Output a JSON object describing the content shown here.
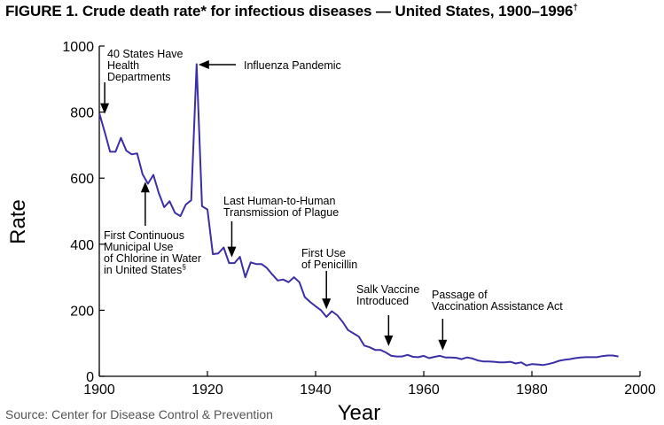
{
  "header": {
    "title": "FIGURE 1. Crude death rate* for infectious diseases — United States, 1900–1996",
    "title_mark": "†"
  },
  "footer": {
    "source": "Source: Center for Disease Control & Prevention"
  },
  "colors": {
    "line": "#3b2fa5",
    "axis": "#000000"
  },
  "chart_data": {
    "type": "line",
    "title": "FIGURE 1. Crude death rate* for infectious diseases — United States, 1900–1996†",
    "xlabel": "Year",
    "ylabel": "Rate",
    "xlim": [
      1900,
      2000
    ],
    "ylim": [
      0,
      1000
    ],
    "x_ticks": [
      1900,
      1920,
      1940,
      1960,
      1980,
      2000
    ],
    "y_ticks": [
      0,
      200,
      400,
      600,
      800,
      1000
    ],
    "grid": false,
    "series": [
      {
        "x": [
          1900,
          1901,
          1902,
          1903,
          1904,
          1905,
          1906,
          1907,
          1908,
          1909,
          1910,
          1911,
          1912,
          1913,
          1914,
          1915,
          1916,
          1917,
          1918,
          1919,
          1920,
          1921,
          1922,
          1923,
          1924,
          1925,
          1926,
          1927,
          1928,
          1929,
          1930,
          1931,
          1932,
          1933,
          1934,
          1935,
          1936,
          1937,
          1938,
          1939,
          1940,
          1941,
          1942,
          1943,
          1944,
          1945,
          1946,
          1947,
          1948,
          1949,
          1950,
          1951,
          1952,
          1953,
          1954,
          1955,
          1956,
          1957,
          1958,
          1959,
          1960,
          1961,
          1962,
          1963,
          1964,
          1965,
          1966,
          1967,
          1968,
          1969,
          1970,
          1971,
          1972,
          1973,
          1974,
          1975,
          1976,
          1977,
          1978,
          1979,
          1980,
          1981,
          1982,
          1983,
          1984,
          1985,
          1986,
          1987,
          1988,
          1989,
          1990,
          1991,
          1992,
          1993,
          1994,
          1995,
          1996
        ],
        "y": [
          797,
          740,
          680,
          680,
          722,
          683,
          672,
          675,
          612,
          583,
          610,
          555,
          512,
          530,
          495,
          485,
          520,
          533,
          945,
          515,
          505,
          370,
          372,
          390,
          343,
          343,
          362,
          300,
          345,
          340,
          340,
          328,
          308,
          290,
          293,
          285,
          300,
          285,
          240,
          225,
          212,
          200,
          180,
          197,
          185,
          165,
          140,
          130,
          120,
          93,
          88,
          80,
          80,
          72,
          62,
          60,
          60,
          65,
          59,
          58,
          62,
          55,
          59,
          62,
          57,
          57,
          56,
          52,
          57,
          54,
          48,
          45,
          45,
          44,
          42,
          42,
          44,
          39,
          42,
          33,
          37,
          36,
          34,
          37,
          41,
          47,
          50,
          52,
          55,
          57,
          58,
          58,
          58,
          61,
          63,
          63,
          60
        ]
      }
    ],
    "annotations": [
      {
        "lines": [
          "40 States Have",
          "Health",
          "Departments"
        ],
        "x": 1901,
        "y": 800
      },
      {
        "lines": [
          "Influenza Pandemic"
        ],
        "x": 1918,
        "y": 945
      },
      {
        "lines": [
          "First Continuous",
          "Municipal Use",
          "of Chlorine in Water",
          "in United States"
        ],
        "mark": "§",
        "x": 1908.5,
        "y": 600
      },
      {
        "lines": [
          "Last Human-to-Human",
          "Transmission of Plague"
        ],
        "x": 1924.5,
        "y": 355
      },
      {
        "lines": [
          "First Use",
          "of Penicillin"
        ],
        "x": 1942,
        "y": 190
      },
      {
        "lines": [
          "Salk Vaccine",
          "Introduced"
        ],
        "x": 1953.5,
        "y": 78
      },
      {
        "lines": [
          "Passage of",
          "Vaccination Assistance Act"
        ],
        "x": 1963.5,
        "y": 65
      }
    ]
  }
}
